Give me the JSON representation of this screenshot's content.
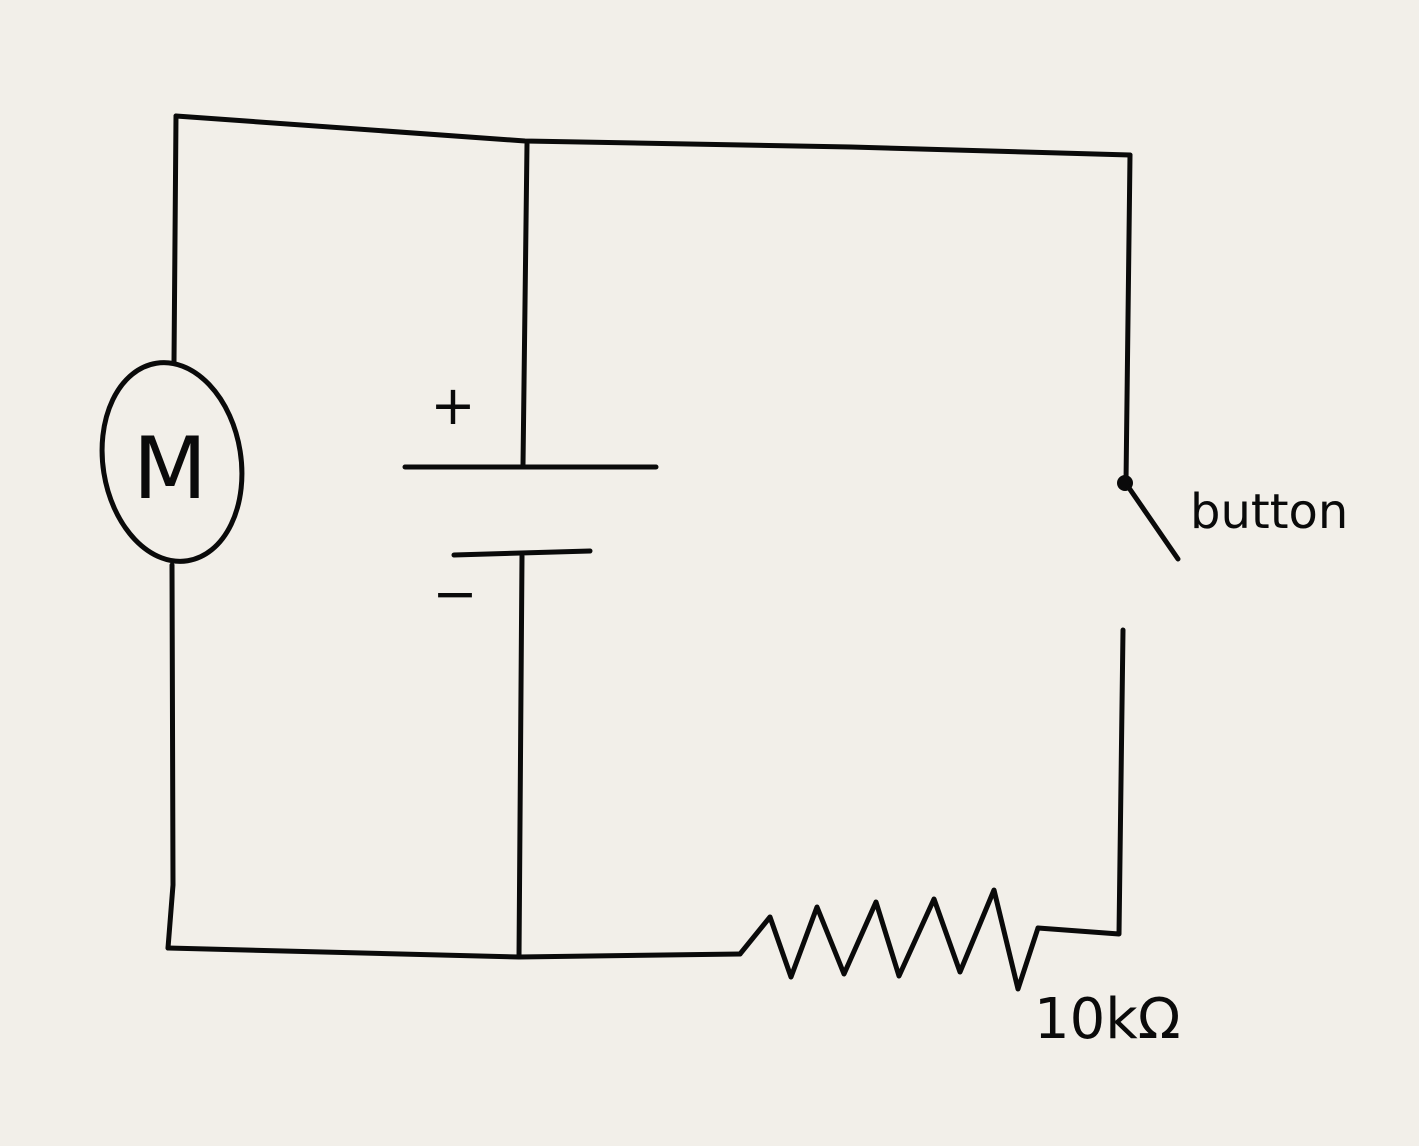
{
  "diagram": {
    "motor": {
      "label": "M"
    },
    "battery": {
      "plus_label": "+",
      "minus_label": "−"
    },
    "switch": {
      "label": "button"
    },
    "resistor": {
      "label": "10kΩ"
    },
    "colors": {
      "background": "#f2efe9",
      "ink": "#0a0a0a"
    }
  }
}
